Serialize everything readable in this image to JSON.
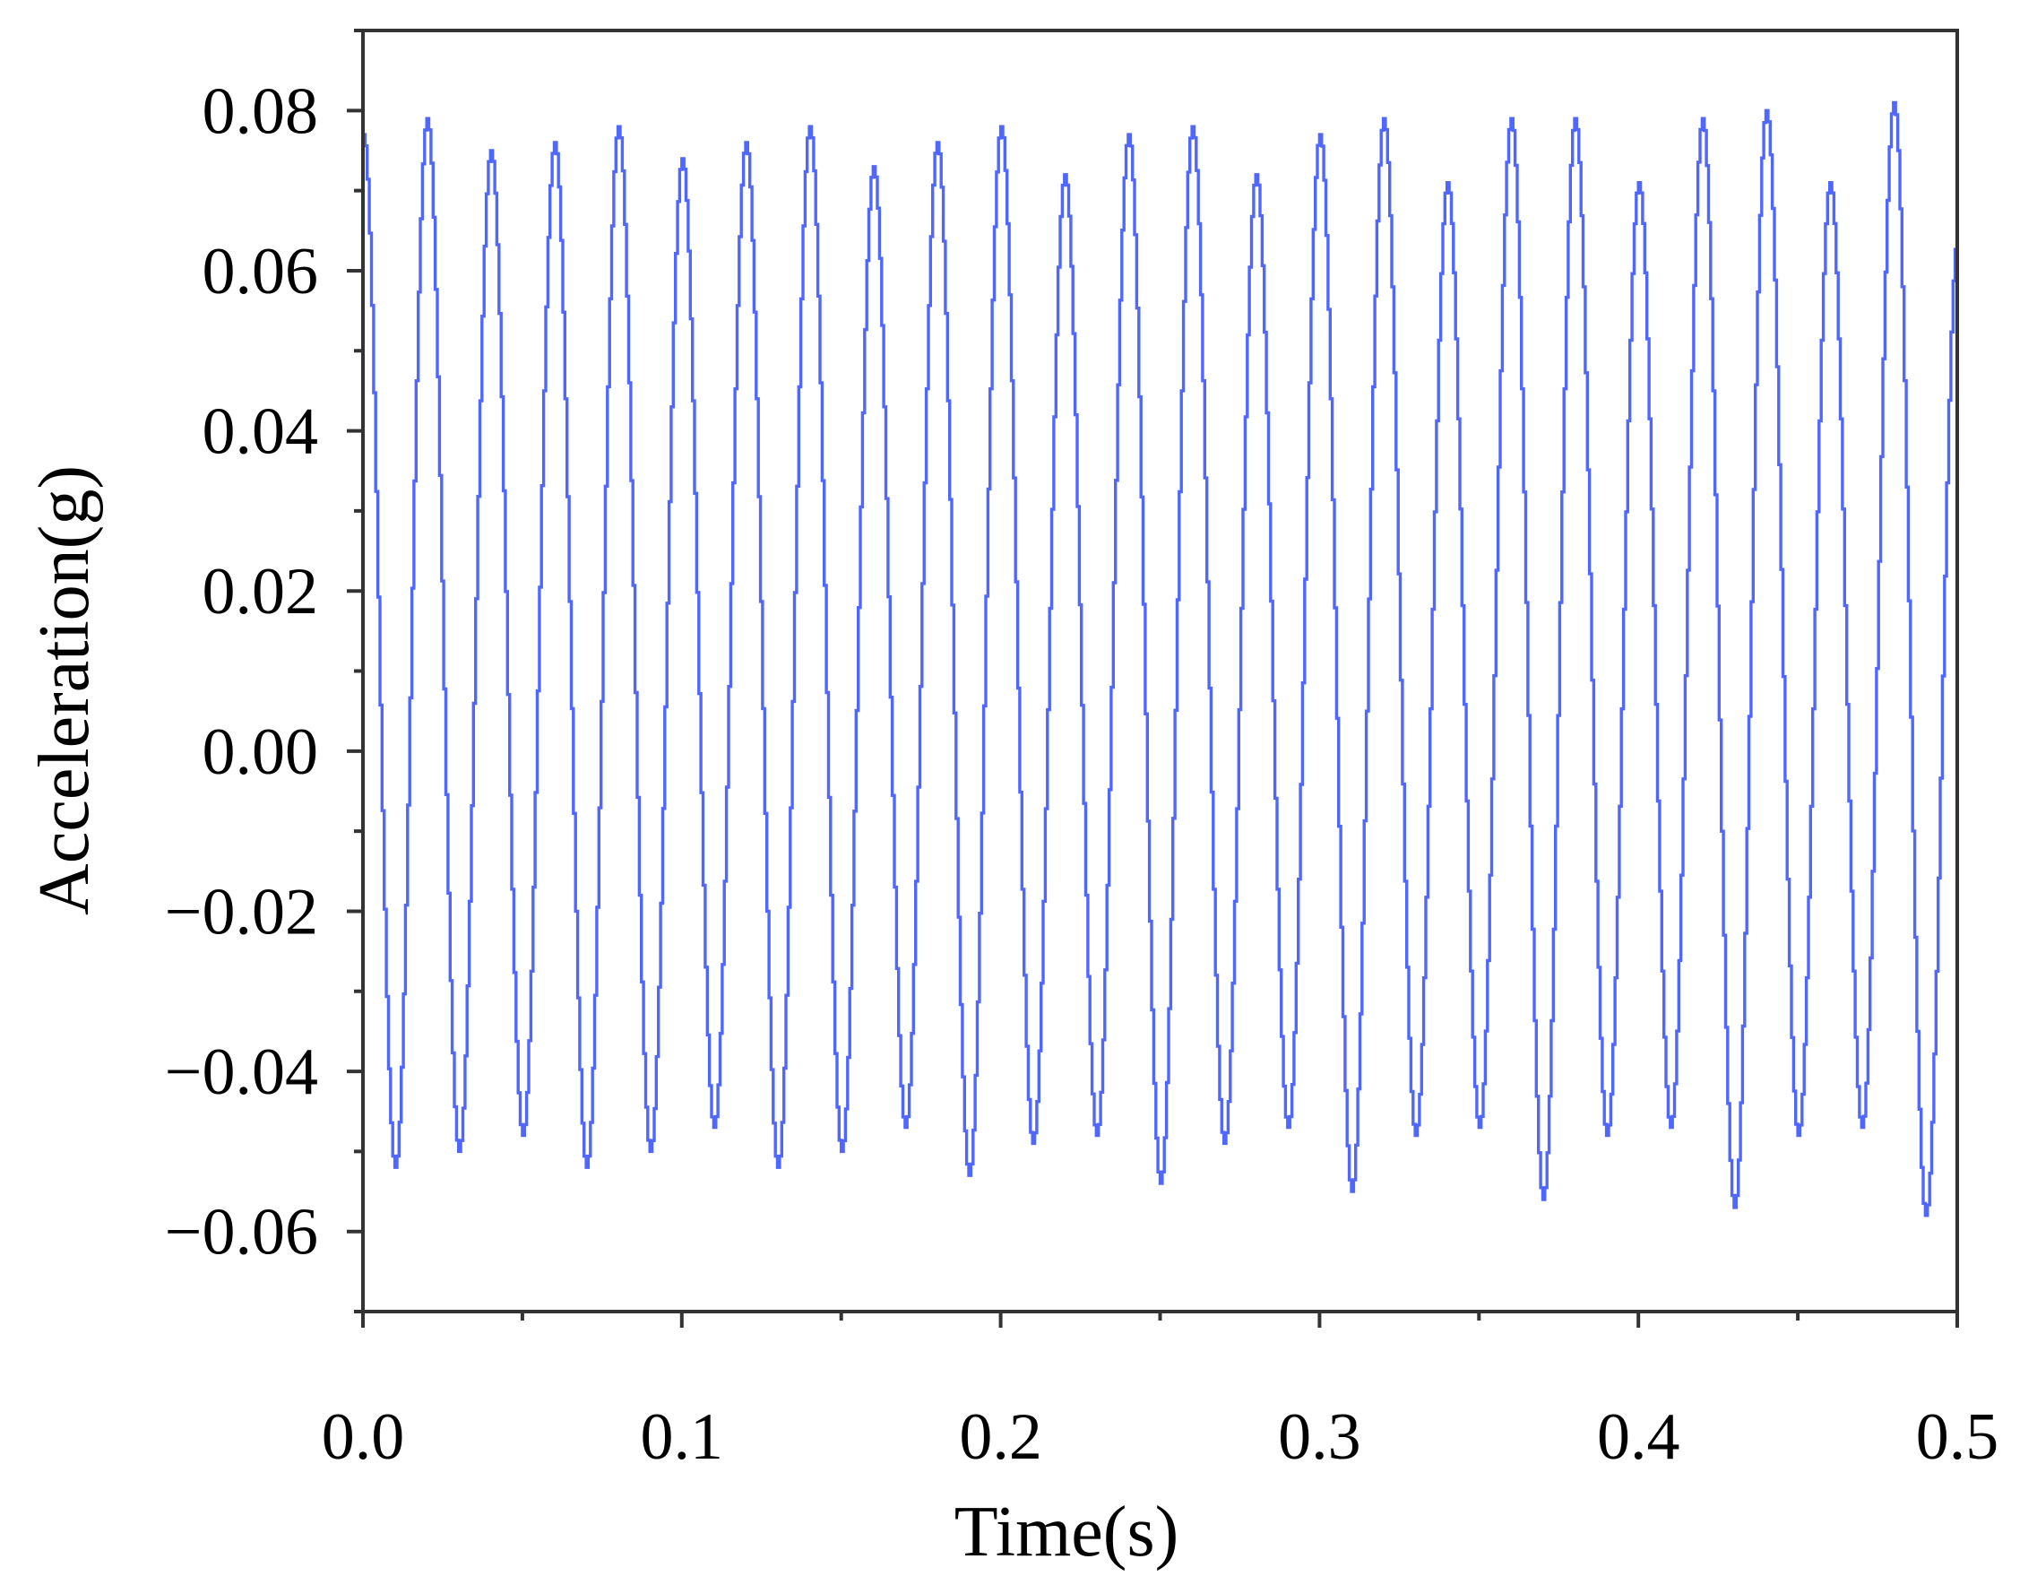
{
  "chart_data": {
    "type": "line",
    "title": "",
    "xlabel": "Time(s)",
    "ylabel": "Acceleration(g)",
    "xlim": [
      0,
      0.5
    ],
    "ylim": [
      -0.07,
      0.09
    ],
    "x_ticks": [
      0.0,
      0.1,
      0.2,
      0.3,
      0.4,
      0.5
    ],
    "x_tick_labels": [
      "0.0",
      "0.1",
      "0.2",
      "0.3",
      "0.4",
      "0.5"
    ],
    "y_ticks": [
      0.08,
      0.06,
      0.04,
      0.02,
      0.0,
      -0.02,
      -0.04,
      -0.06
    ],
    "y_tick_labels": [
      "0.08",
      "0.06",
      "0.04",
      "0.02",
      "0.00",
      "−0.02",
      "−0.04",
      "−0.06"
    ],
    "grid": false,
    "legend": "none",
    "line_color": "#1f3cff",
    "series": [
      {
        "name": "",
        "sampling": "staircase, 30 steps per period",
        "frequency_hz": 50,
        "peaks": [
          {
            "t": 0.0,
            "v": 0.077
          },
          {
            "t": 0.02,
            "v": 0.079
          },
          {
            "t": 0.04,
            "v": 0.075
          },
          {
            "t": 0.06,
            "v": 0.076
          },
          {
            "t": 0.08,
            "v": 0.078
          },
          {
            "t": 0.1,
            "v": 0.074
          },
          {
            "t": 0.12,
            "v": 0.076
          },
          {
            "t": 0.14,
            "v": 0.078
          },
          {
            "t": 0.16,
            "v": 0.073
          },
          {
            "t": 0.18,
            "v": 0.076
          },
          {
            "t": 0.2,
            "v": 0.078
          },
          {
            "t": 0.22,
            "v": 0.072
          },
          {
            "t": 0.24,
            "v": 0.077
          },
          {
            "t": 0.26,
            "v": 0.078
          },
          {
            "t": 0.28,
            "v": 0.072
          },
          {
            "t": 0.3,
            "v": 0.077
          },
          {
            "t": 0.32,
            "v": 0.079
          },
          {
            "t": 0.34,
            "v": 0.071
          },
          {
            "t": 0.36,
            "v": 0.079
          },
          {
            "t": 0.38,
            "v": 0.079
          },
          {
            "t": 0.4,
            "v": 0.071
          },
          {
            "t": 0.42,
            "v": 0.079
          },
          {
            "t": 0.44,
            "v": 0.08
          },
          {
            "t": 0.46,
            "v": 0.071
          },
          {
            "t": 0.48,
            "v": 0.081
          }
        ],
        "troughs": [
          {
            "t": 0.01,
            "v": -0.052
          },
          {
            "t": 0.03,
            "v": -0.05
          },
          {
            "t": 0.05,
            "v": -0.048
          },
          {
            "t": 0.07,
            "v": -0.052
          },
          {
            "t": 0.09,
            "v": -0.05
          },
          {
            "t": 0.11,
            "v": -0.047
          },
          {
            "t": 0.13,
            "v": -0.052
          },
          {
            "t": 0.15,
            "v": -0.05
          },
          {
            "t": 0.17,
            "v": -0.047
          },
          {
            "t": 0.19,
            "v": -0.053
          },
          {
            "t": 0.21,
            "v": -0.049
          },
          {
            "t": 0.23,
            "v": -0.048
          },
          {
            "t": 0.25,
            "v": -0.054
          },
          {
            "t": 0.27,
            "v": -0.049
          },
          {
            "t": 0.29,
            "v": -0.047
          },
          {
            "t": 0.31,
            "v": -0.055
          },
          {
            "t": 0.33,
            "v": -0.048
          },
          {
            "t": 0.35,
            "v": -0.047
          },
          {
            "t": 0.37,
            "v": -0.056
          },
          {
            "t": 0.39,
            "v": -0.048
          },
          {
            "t": 0.41,
            "v": -0.047
          },
          {
            "t": 0.43,
            "v": -0.057
          },
          {
            "t": 0.45,
            "v": -0.048
          },
          {
            "t": 0.47,
            "v": -0.047
          },
          {
            "t": 0.49,
            "v": -0.058
          }
        ],
        "end": {
          "t": 0.5,
          "v": 0.064
        }
      }
    ]
  }
}
